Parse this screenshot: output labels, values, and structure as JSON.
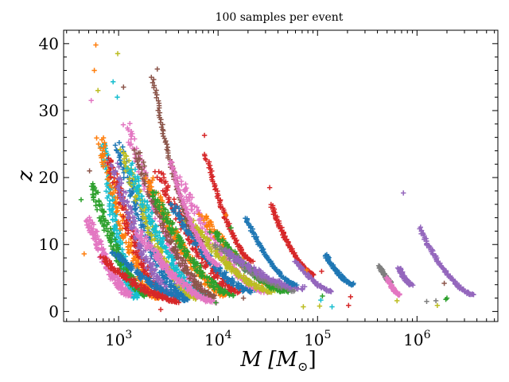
{
  "chart_data": {
    "type": "scatter",
    "title": "100 samples per event",
    "xlabel": "M [M⊙]",
    "xlabel_italic": "M",
    "xlabel_unit": "[M",
    "xlabel_unit_sub": "⊙",
    "xlabel_unit_close": "]",
    "ylabel": "z",
    "xscale": "log",
    "xlim": [
      280,
      6500000
    ],
    "ylim": [
      -1.5,
      42
    ],
    "x_ticks": [
      {
        "value": 1000,
        "base": "10",
        "exp": "3"
      },
      {
        "value": 10000,
        "base": "10",
        "exp": "4"
      },
      {
        "value": 100000,
        "base": "10",
        "exp": "5"
      },
      {
        "value": 1000000,
        "base": "10",
        "exp": "6"
      }
    ],
    "y_ticks": [
      {
        "value": 0,
        "label": "0"
      },
      {
        "value": 10,
        "label": "10"
      },
      {
        "value": 20,
        "label": "20"
      },
      {
        "value": 30,
        "label": "30"
      },
      {
        "value": 40,
        "label": "40"
      }
    ],
    "marker": "+",
    "grid": false,
    "palette": [
      "#1f77b4",
      "#ff7f0e",
      "#2ca02c",
      "#d62728",
      "#9467bd",
      "#8c564b",
      "#e377c2",
      "#7f7f7f",
      "#bcbd22",
      "#17becf"
    ],
    "dense_bands": [
      {
        "color": "#17becf",
        "m0": 700,
        "z0": 25,
        "m1": 1500,
        "z1": 2.2,
        "n": 180
      },
      {
        "color": "#e377c2",
        "m0": 500,
        "z0": 14,
        "m1": 1300,
        "z1": 2.5,
        "n": 180
      },
      {
        "color": "#2ca02c",
        "m0": 550,
        "z0": 19,
        "m1": 1900,
        "z1": 2.5,
        "n": 150
      },
      {
        "color": "#ff7f0e",
        "m0": 650,
        "z0": 26,
        "m1": 2500,
        "z1": 2.0,
        "n": 150
      },
      {
        "color": "#d62728",
        "m0": 800,
        "z0": 23,
        "m1": 3000,
        "z1": 2.3,
        "n": 150
      },
      {
        "color": "#9467bd",
        "m0": 900,
        "z0": 22,
        "m1": 3500,
        "z1": 2.5,
        "n": 150
      },
      {
        "color": "#1f77b4",
        "m0": 1000,
        "z0": 25,
        "m1": 4500,
        "z1": 2.5,
        "n": 150
      },
      {
        "color": "#bcbd22",
        "m0": 1100,
        "z0": 24,
        "m1": 6000,
        "z1": 2.0,
        "n": 150
      },
      {
        "color": "#e377c2",
        "m0": 1200,
        "z0": 28,
        "m1": 8000,
        "z1": 2.5,
        "n": 150
      },
      {
        "color": "#17becf",
        "m0": 1300,
        "z0": 22,
        "m1": 7000,
        "z1": 2.5,
        "n": 150
      },
      {
        "color": "#8c564b",
        "m0": 1500,
        "z0": 24,
        "m1": 9000,
        "z1": 2.2,
        "n": 150
      },
      {
        "color": "#ff7f0e",
        "m0": 2000,
        "z0": 20,
        "m1": 12000,
        "z1": 2.5,
        "n": 140
      },
      {
        "color": "#2ca02c",
        "m0": 2200,
        "z0": 18,
        "m1": 14000,
        "z1": 2.5,
        "n": 140
      },
      {
        "color": "#d62728",
        "m0": 2500,
        "z0": 21,
        "m1": 16000,
        "z1": 3.0,
        "n": 140
      },
      {
        "color": "#1f77b4",
        "m0": 3500,
        "z0": 16,
        "m1": 22000,
        "z1": 3.0,
        "n": 140
      },
      {
        "color": "#e377c2",
        "m0": 4000,
        "z0": 20,
        "m1": 30000,
        "z1": 3.0,
        "n": 140
      },
      {
        "color": "#bcbd22",
        "m0": 5000,
        "z0": 14,
        "m1": 35000,
        "z1": 3.0,
        "n": 140
      },
      {
        "color": "#ff7f0e",
        "m0": 7000,
        "z0": 14.5,
        "m1": 45000,
        "z1": 3.5,
        "n": 120
      },
      {
        "color": "#2ca02c",
        "m0": 9000,
        "z0": 12,
        "m1": 50000,
        "z1": 3.0,
        "n": 110
      },
      {
        "color": "#7f7f7f",
        "m0": 10000,
        "z0": 10,
        "m1": 60000,
        "z1": 3.2,
        "n": 100
      },
      {
        "color": "#9467bd",
        "m0": 12000,
        "z0": 9,
        "m1": 70000,
        "z1": 3.5,
        "n": 100
      },
      {
        "color": "#e377c2",
        "m0": 1600,
        "z0": 12,
        "m1": 9000,
        "z1": 1.5,
        "n": 160
      },
      {
        "color": "#1f77b4",
        "m0": 900,
        "z0": 9,
        "m1": 5000,
        "z1": 1.8,
        "n": 120
      },
      {
        "color": "#d62728",
        "m0": 700,
        "z0": 8,
        "m1": 4000,
        "z1": 1.5,
        "n": 120
      }
    ],
    "tracks": [
      {
        "color": "#8c564b",
        "m0": 2200,
        "z0": 35,
        "m1": 6800,
        "z1": 10.5,
        "n": 100
      },
      {
        "color": "#e377c2",
        "m0": 3300,
        "z0": 22.5,
        "m1": 10000,
        "z1": 7.0,
        "n": 90
      },
      {
        "color": "#d62728",
        "m0": 7500,
        "z0": 23.5,
        "m1": 22000,
        "z1": 7.5,
        "n": 90
      },
      {
        "color": "#1f77b4",
        "m0": 19000,
        "z0": 14,
        "m1": 60000,
        "z1": 4.0,
        "n": 90
      },
      {
        "color": "#d62728",
        "m0": 34000,
        "z0": 16,
        "m1": 92000,
        "z1": 5.5,
        "n": 90
      },
      {
        "color": "#9467bd",
        "m0": 60000,
        "z0": 7.5,
        "m1": 140000,
        "z1": 3.0,
        "n": 70
      },
      {
        "color": "#1f77b4",
        "m0": 120000,
        "z0": 8.5,
        "m1": 230000,
        "z1": 4.0,
        "n": 70
      },
      {
        "color": "#7f7f7f",
        "m0": 420000,
        "z0": 6.8,
        "m1": 560000,
        "z1": 4.3,
        "n": 50
      },
      {
        "color": "#e377c2",
        "m0": 500000,
        "z0": 5.0,
        "m1": 670000,
        "z1": 2.5,
        "n": 50
      },
      {
        "color": "#9467bd",
        "m0": 660000,
        "z0": 6.5,
        "m1": 880000,
        "z1": 4.0,
        "n": 50
      },
      {
        "color": "#9467bd",
        "m0": 1050000,
        "z0": 12.5,
        "m1": 3700000,
        "z1": 2.5,
        "n": 90
      }
    ],
    "outliers": [
      {
        "color": "#ff7f0e",
        "m": 590,
        "z": 39.8
      },
      {
        "color": "#bcbd22",
        "m": 980,
        "z": 38.5
      },
      {
        "color": "#ff7f0e",
        "m": 570,
        "z": 36.0
      },
      {
        "color": "#17becf",
        "m": 880,
        "z": 34.3
      },
      {
        "color": "#bcbd22",
        "m": 620,
        "z": 33.0
      },
      {
        "color": "#17becf",
        "m": 970,
        "z": 32.0
      },
      {
        "color": "#e377c2",
        "m": 530,
        "z": 31.5
      },
      {
        "color": "#8c564b",
        "m": 1120,
        "z": 33.5
      },
      {
        "color": "#8c564b",
        "m": 2450,
        "z": 36.2
      },
      {
        "color": "#d62728",
        "m": 7300,
        "z": 26.3
      },
      {
        "color": "#d62728",
        "m": 33000,
        "z": 18.5
      },
      {
        "color": "#9467bd",
        "m": 730000,
        "z": 17.7
      },
      {
        "color": "#ff7f0e",
        "m": 12000,
        "z": 14.4
      },
      {
        "color": "#2ca02c",
        "m": 13500,
        "z": 12.5
      },
      {
        "color": "#2ca02c",
        "m": 420,
        "z": 16.7
      },
      {
        "color": "#ff7f0e",
        "m": 450,
        "z": 8.6
      },
      {
        "color": "#8c564b",
        "m": 510,
        "z": 21.0
      },
      {
        "color": "#d62728",
        "m": 2650,
        "z": 0.3
      },
      {
        "color": "#2ca02c",
        "m": 9500,
        "z": 1.3
      },
      {
        "color": "#8c564b",
        "m": 18000,
        "z": 2.0
      },
      {
        "color": "#bcbd22",
        "m": 72000,
        "z": 0.7
      },
      {
        "color": "#bcbd22",
        "m": 105000,
        "z": 0.8
      },
      {
        "color": "#17becf",
        "m": 108000,
        "z": 1.7
      },
      {
        "color": "#2ca02c",
        "m": 112000,
        "z": 2.3
      },
      {
        "color": "#17becf",
        "m": 140000,
        "z": 0.7
      },
      {
        "color": "#ff7f0e",
        "m": 78000,
        "z": 6.2
      },
      {
        "color": "#d62728",
        "m": 110000,
        "z": 6.0
      },
      {
        "color": "#d62728",
        "m": 205000,
        "z": 0.9
      },
      {
        "color": "#d62728",
        "m": 215000,
        "z": 2.2
      },
      {
        "color": "#1f77b4",
        "m": 230000,
        "z": 4.2
      },
      {
        "color": "#bcbd22",
        "m": 630000,
        "z": 1.6
      },
      {
        "color": "#7f7f7f",
        "m": 1250000,
        "z": 1.5
      },
      {
        "color": "#7f7f7f",
        "m": 1550000,
        "z": 1.6
      },
      {
        "color": "#bcbd22",
        "m": 1600000,
        "z": 0.9
      },
      {
        "color": "#8c564b",
        "m": 1880000,
        "z": 4.2
      },
      {
        "color": "#2ca02c",
        "m": 1950000,
        "z": 1.8
      },
      {
        "color": "#2ca02c",
        "m": 2000000,
        "z": 2.0
      }
    ]
  }
}
